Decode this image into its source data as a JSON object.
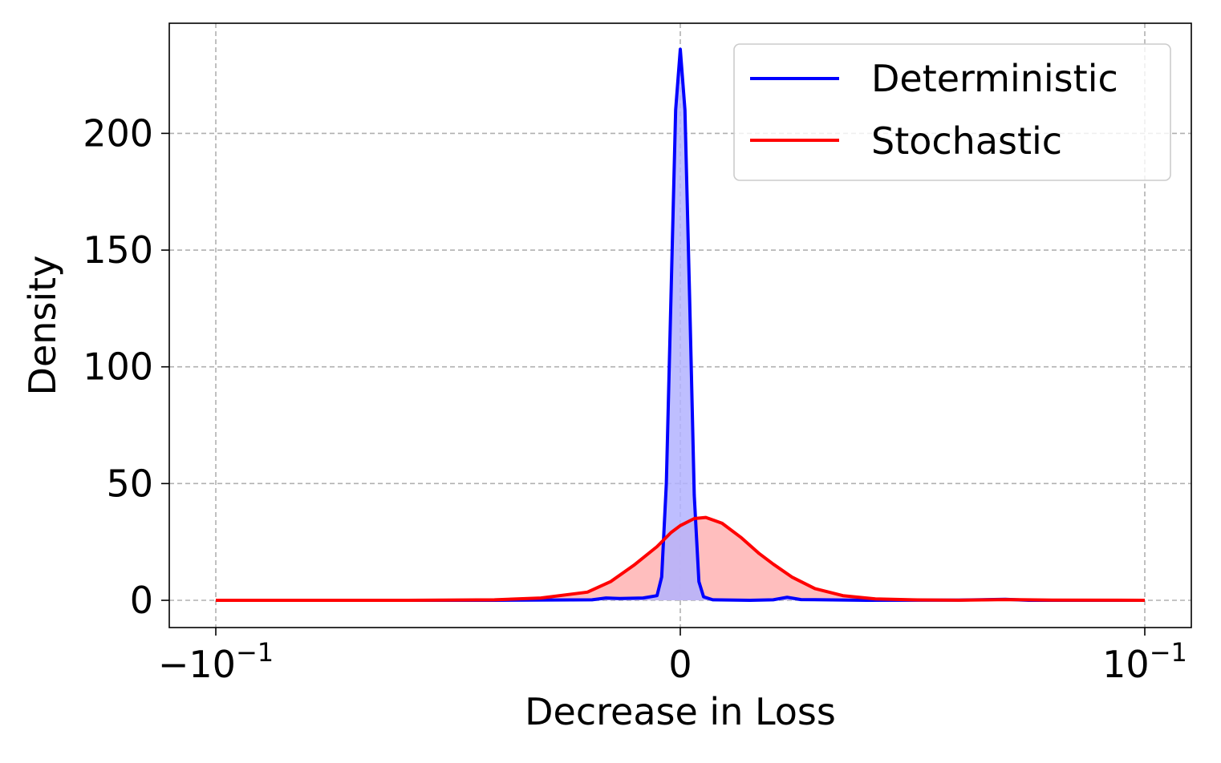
{
  "chart_data": {
    "type": "area",
    "xlabel": "Decrease in Loss",
    "ylabel": "Density",
    "x_scale": "symlog",
    "xlim_labels": [
      "-10^-1",
      "0",
      "10^-1"
    ],
    "ylim": [
      -12,
      246
    ],
    "grid": true,
    "legend_position": "top-right",
    "x_ticks": [
      {
        "pos": -1,
        "base": "−10",
        "exp": "−1"
      },
      {
        "pos": 0,
        "base": "0",
        "exp": ""
      },
      {
        "pos": 1,
        "base": "10",
        "exp": "−1"
      }
    ],
    "y_ticks": [
      0,
      50,
      100,
      150,
      200
    ],
    "series": [
      {
        "name": "Deterministic",
        "color": "#0000ff",
        "fill": "#b3b3ff",
        "points": [
          [
            -1.0,
            0
          ],
          [
            -0.4,
            0
          ],
          [
            -0.19,
            0.2
          ],
          [
            -0.16,
            1
          ],
          [
            -0.13,
            0.8
          ],
          [
            -0.08,
            1
          ],
          [
            -0.05,
            2
          ],
          [
            -0.04,
            10
          ],
          [
            -0.03,
            50
          ],
          [
            -0.02,
            130
          ],
          [
            -0.01,
            210
          ],
          [
            0.0,
            236
          ],
          [
            0.01,
            210
          ],
          [
            0.02,
            130
          ],
          [
            0.03,
            45
          ],
          [
            0.04,
            8
          ],
          [
            0.05,
            1.5
          ],
          [
            0.07,
            0.2
          ],
          [
            0.15,
            0
          ],
          [
            0.2,
            0.2
          ],
          [
            0.23,
            1.3
          ],
          [
            0.26,
            0.3
          ],
          [
            0.4,
            0
          ],
          [
            0.6,
            0.1
          ],
          [
            0.7,
            0.4
          ],
          [
            0.75,
            0
          ],
          [
            1.0,
            0
          ]
        ]
      },
      {
        "name": "Stochastic",
        "color": "#ff0000",
        "fill": "#ffb3b3",
        "points": [
          [
            -1.0,
            0
          ],
          [
            -0.6,
            0
          ],
          [
            -0.4,
            0.2
          ],
          [
            -0.3,
            1
          ],
          [
            -0.2,
            3.5
          ],
          [
            -0.15,
            8
          ],
          [
            -0.1,
            15
          ],
          [
            -0.05,
            23
          ],
          [
            -0.02,
            29
          ],
          [
            0.0,
            32
          ],
          [
            0.03,
            35
          ],
          [
            0.055,
            35.5
          ],
          [
            0.09,
            33
          ],
          [
            0.13,
            27
          ],
          [
            0.17,
            20
          ],
          [
            0.2,
            15.5
          ],
          [
            0.24,
            10
          ],
          [
            0.29,
            5
          ],
          [
            0.35,
            2
          ],
          [
            0.42,
            0.6
          ],
          [
            0.5,
            0.2
          ],
          [
            0.6,
            0.05
          ],
          [
            0.7,
            0.3
          ],
          [
            0.8,
            0.1
          ],
          [
            1.0,
            0
          ]
        ]
      }
    ]
  }
}
